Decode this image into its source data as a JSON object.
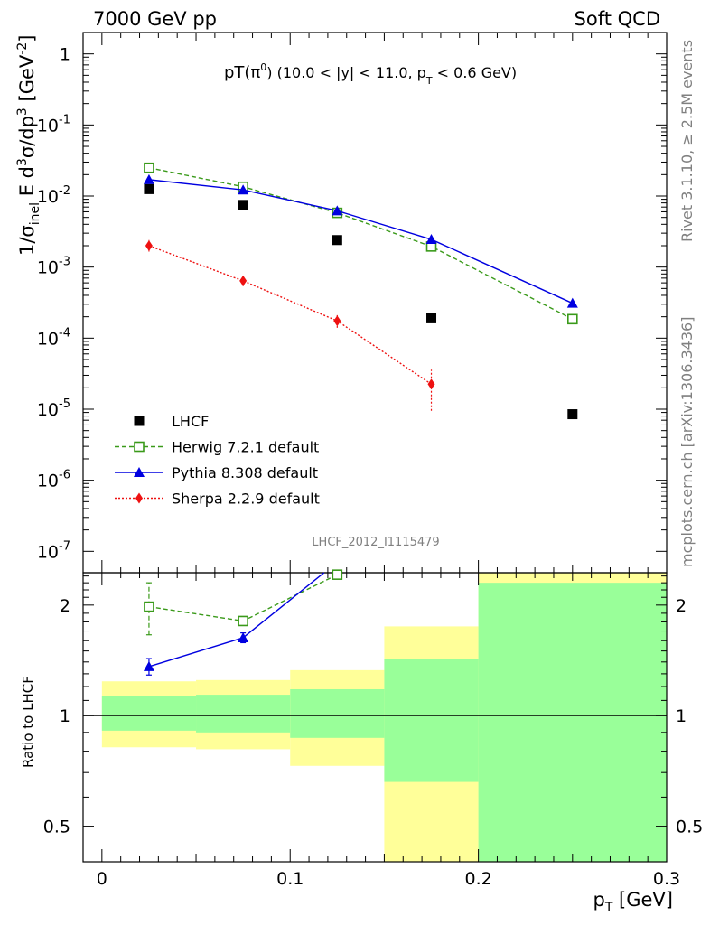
{
  "header": {
    "left": "7000 GeV pp",
    "right": "Soft QCD"
  },
  "side_labels": {
    "rivet": "Rivet 3.1.10, ≥ 2.5M events",
    "mcplots": "mcplots.cern.ch [arXiv:1306.3436]"
  },
  "analysis_id": "LHCF_2012_I1115479",
  "chart_data": [
    {
      "type": "scatter",
      "title_parts": {
        "main": "pT(π",
        "sup": "0",
        "rest": ") (10.0 < |y| < 11.0, p",
        "sub": "T",
        "tail": " < 0.6 GeV)"
      },
      "ylabel_parts": [
        "1/σ",
        "inel",
        " E d",
        "3",
        "σ/dp",
        "3",
        " [GeV",
        "-2",
        "]"
      ],
      "y_scale": "log",
      "ylim": [
        5e-08,
        2
      ],
      "xlim": [
        -0.01,
        0.3
      ],
      "y_ticks": [
        {
          "value": 1,
          "base": "1",
          "exp": ""
        },
        {
          "value": 0.1,
          "base": "10",
          "exp": "-1"
        },
        {
          "value": 0.01,
          "base": "10",
          "exp": "-2"
        },
        {
          "value": 0.001,
          "base": "10",
          "exp": "-3"
        },
        {
          "value": 0.0001,
          "base": "10",
          "exp": "-4"
        },
        {
          "value": 1e-05,
          "base": "10",
          "exp": "-5"
        },
        {
          "value": 1e-06,
          "base": "10",
          "exp": "-6"
        },
        {
          "value": 1e-07,
          "base": "10",
          "exp": "-7"
        }
      ],
      "legend_position": "bottom-left",
      "series": [
        {
          "name": "LHCF",
          "style": "marker",
          "marker": "filled-square",
          "color": "#000000",
          "points": [
            {
              "x": 0.025,
              "y": 0.0125
            },
            {
              "x": 0.075,
              "y": 0.0075
            },
            {
              "x": 0.125,
              "y": 0.0024
            },
            {
              "x": 0.175,
              "y": 0.00019
            },
            {
              "x": 0.25,
              "y": 8.5e-06
            }
          ]
        },
        {
          "name": "Herwig 7.2.1 default",
          "style": "dashed",
          "marker": "open-square",
          "color": "#3a9a1a",
          "points": [
            {
              "x": 0.025,
              "y": 0.025
            },
            {
              "x": 0.075,
              "y": 0.0135
            },
            {
              "x": 0.125,
              "y": 0.0058
            },
            {
              "x": 0.175,
              "y": 0.00195
            },
            {
              "x": 0.25,
              "y": 0.000185
            }
          ]
        },
        {
          "name": "Pythia 8.308 default",
          "style": "solid",
          "marker": "filled-triangle",
          "color": "#0000e0",
          "points": [
            {
              "x": 0.025,
              "y": 0.017
            },
            {
              "x": 0.075,
              "y": 0.0122
            },
            {
              "x": 0.125,
              "y": 0.0062
            },
            {
              "x": 0.175,
              "y": 0.00245
            },
            {
              "x": 0.25,
              "y": 0.00031
            }
          ]
        },
        {
          "name": "Sherpa 2.2.9 default",
          "style": "dotted",
          "marker": "filled-diamond",
          "color": "#ee1111",
          "points": [
            {
              "x": 0.025,
              "y": 0.002,
              "lo": 0.00165,
              "hi": 0.0024
            },
            {
              "x": 0.075,
              "y": 0.00064,
              "lo": 0.00054,
              "hi": 0.00076
            },
            {
              "x": 0.125,
              "y": 0.000175,
              "lo": 0.00014,
              "hi": 0.00022
            },
            {
              "x": 0.175,
              "y": 2.25e-05,
              "lo": 9.5e-06,
              "hi": 3.6e-05
            }
          ]
        }
      ]
    },
    {
      "type": "scatter",
      "xlabel": "p",
      "xlabel_sub": "T",
      "xlabel_unit": " [GeV]",
      "ylabel": "Ratio to LHCF",
      "y_scale": "log",
      "ylim": [
        0.4,
        2.45
      ],
      "xlim": [
        -0.01,
        0.3
      ],
      "x_ticks": [
        {
          "value": 0,
          "label": "0"
        },
        {
          "value": 0.1,
          "label": "0.1"
        },
        {
          "value": 0.2,
          "label": "0.2"
        },
        {
          "value": 0.3,
          "label": "0.3"
        }
      ],
      "y_ticks": [
        {
          "value": 0.5,
          "label": "0.5"
        },
        {
          "value": 1,
          "label": "1"
        },
        {
          "value": 2,
          "label": "2"
        }
      ],
      "uncertainty_bands": [
        {
          "x0": 0.0,
          "x1": 0.05,
          "yellow": [
            0.82,
            1.24
          ],
          "green": [
            0.91,
            1.13
          ]
        },
        {
          "x0": 0.05,
          "x1": 0.1,
          "yellow": [
            0.81,
            1.25
          ],
          "green": [
            0.9,
            1.14
          ]
        },
        {
          "x0": 0.1,
          "x1": 0.15,
          "yellow": [
            0.73,
            1.33
          ],
          "green": [
            0.87,
            1.18
          ]
        },
        {
          "x0": 0.15,
          "x1": 0.2,
          "yellow": [
            0.4,
            1.75
          ],
          "green": [
            0.66,
            1.43
          ]
        },
        {
          "x0": 0.2,
          "x1": 0.3,
          "yellow": [
            0.4,
            2.45
          ],
          "green": [
            0.4,
            2.3
          ]
        }
      ],
      "series": [
        {
          "name": "Herwig 7.2.1 default",
          "style": "dashed",
          "marker": "open-square",
          "color": "#3a9a1a",
          "points": [
            {
              "x": 0.025,
              "y": 1.98,
              "lo": 1.66,
              "hi": 2.3
            },
            {
              "x": 0.075,
              "y": 1.81,
              "lo": 1.78,
              "hi": 1.84
            },
            {
              "x": 0.125,
              "y": 2.42,
              "lo": 2.38,
              "hi": 2.46
            }
          ]
        },
        {
          "name": "Pythia 8.308 default",
          "style": "solid",
          "marker": "filled-triangle",
          "color": "#0000e0",
          "points": [
            {
              "x": 0.025,
              "y": 1.36,
              "lo": 1.29,
              "hi": 1.43
            },
            {
              "x": 0.075,
              "y": 1.63,
              "lo": 1.58,
              "hi": 1.68
            },
            {
              "x": 0.118,
              "y": 2.45,
              "lo": 2.45,
              "hi": 2.45
            }
          ]
        }
      ]
    }
  ]
}
